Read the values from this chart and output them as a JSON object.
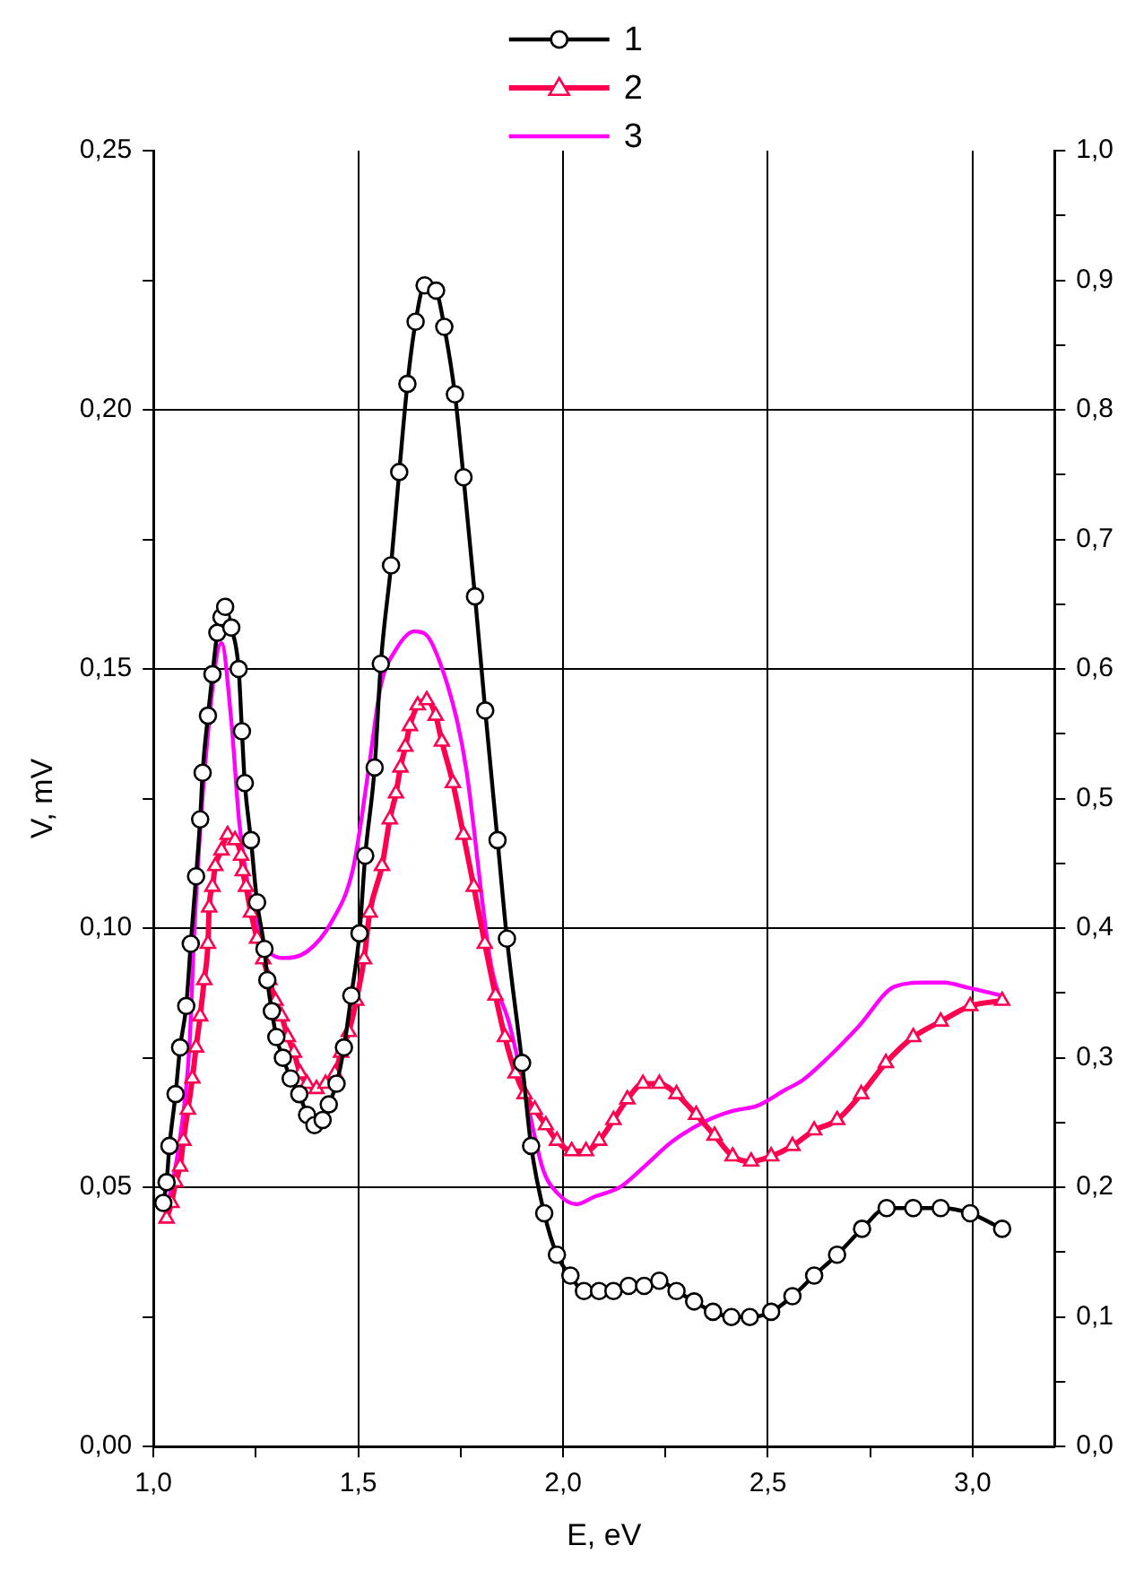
{
  "chart_data": {
    "type": "line",
    "xlabel": "E, eV",
    "ylabel": "V, mV",
    "xlim": [
      1.0,
      3.2
    ],
    "xticks": [
      {
        "value": 1.0,
        "label": "1,0"
      },
      {
        "value": 1.25,
        "label": null
      },
      {
        "value": 1.5,
        "label": "1,5"
      },
      {
        "value": 1.75,
        "label": null
      },
      {
        "value": 2.0,
        "label": "2,0"
      },
      {
        "value": 2.25,
        "label": null
      },
      {
        "value": 2.5,
        "label": "2,5"
      },
      {
        "value": 2.75,
        "label": null
      },
      {
        "value": 3.0,
        "label": "3,0"
      }
    ],
    "ylim": [
      0,
      0.25
    ],
    "yticks": [
      {
        "value": 0,
        "label": "0,00"
      },
      {
        "value": 0.025,
        "label": null
      },
      {
        "value": 0.05,
        "label": "0,05"
      },
      {
        "value": 0.075,
        "label": null
      },
      {
        "value": 0.1,
        "label": "0,10"
      },
      {
        "value": 0.125,
        "label": null
      },
      {
        "value": 0.15,
        "label": "0,15"
      },
      {
        "value": 0.175,
        "label": null
      },
      {
        "value": 0.2,
        "label": "0,20"
      },
      {
        "value": 0.225,
        "label": null
      },
      {
        "value": 0.25,
        "label": "0,25"
      }
    ],
    "y2lim": [
      0,
      1.0
    ],
    "y2ticks": [
      {
        "value": 0,
        "label": "0,0"
      },
      {
        "value": 0.05,
        "label": null
      },
      {
        "value": 0.1,
        "label": "0,1"
      },
      {
        "value": 0.15,
        "label": null
      },
      {
        "value": 0.2,
        "label": "0,2"
      },
      {
        "value": 0.25,
        "label": null
      },
      {
        "value": 0.3,
        "label": "0,3"
      },
      {
        "value": 0.35,
        "label": null
      },
      {
        "value": 0.4,
        "label": "0,4"
      },
      {
        "value": 0.45,
        "label": null
      },
      {
        "value": 0.5,
        "label": "0,5"
      },
      {
        "value": 0.55,
        "label": null
      },
      {
        "value": 0.6,
        "label": "0,6"
      },
      {
        "value": 0.65,
        "label": null
      },
      {
        "value": 0.7,
        "label": "0,7"
      },
      {
        "value": 0.75,
        "label": null
      },
      {
        "value": 0.8,
        "label": "0,8"
      },
      {
        "value": 0.85,
        "label": null
      },
      {
        "value": 0.9,
        "label": "0,9"
      },
      {
        "value": 0.95,
        "label": null
      },
      {
        "value": 1.0,
        "label": "1,0"
      }
    ],
    "grid": true,
    "legend": "top",
    "series": [
      {
        "name": "1",
        "color": "#000000",
        "marker": "circle",
        "x": [
          1.024,
          1.032,
          1.039,
          1.054,
          1.065,
          1.08,
          1.091,
          1.104,
          1.114,
          1.12,
          1.133,
          1.144,
          1.156,
          1.166,
          1.175,
          1.19,
          1.208,
          1.216,
          1.223,
          1.238,
          1.253,
          1.271,
          1.278,
          1.289,
          1.3,
          1.316,
          1.335,
          1.356,
          1.375,
          1.393,
          1.413,
          1.428,
          1.447,
          1.465,
          1.483,
          1.503,
          1.517,
          1.54,
          1.555,
          1.58,
          1.6,
          1.62,
          1.64,
          1.662,
          1.69,
          1.71,
          1.736,
          1.757,
          1.785,
          1.81,
          1.84,
          1.863,
          1.9,
          1.922,
          1.954,
          1.985,
          2.018,
          2.051,
          2.088,
          2.123,
          2.16,
          2.198,
          2.235,
          2.277,
          2.32,
          2.366,
          2.411,
          2.456,
          2.508,
          2.56,
          2.613,
          2.669,
          2.73,
          2.79,
          2.855,
          2.922,
          2.994,
          3.072
        ],
        "values": [
          0.047,
          0.051,
          0.058,
          0.068,
          0.077,
          0.085,
          0.097,
          0.11,
          0.121,
          0.13,
          0.141,
          0.149,
          0.157,
          0.16,
          0.162,
          0.158,
          0.15,
          0.138,
          0.128,
          0.117,
          0.105,
          0.096,
          0.09,
          0.084,
          0.079,
          0.075,
          0.071,
          0.068,
          0.064,
          0.062,
          0.063,
          0.066,
          0.07,
          0.077,
          0.087,
          0.099,
          0.114,
          0.131,
          0.151,
          0.17,
          0.188,
          0.205,
          0.217,
          0.224,
          0.223,
          0.216,
          0.203,
          0.187,
          0.164,
          0.142,
          0.117,
          0.098,
          0.074,
          0.058,
          0.045,
          0.037,
          0.033,
          0.03,
          0.03,
          0.03,
          0.031,
          0.031,
          0.032,
          0.03,
          0.028,
          0.026,
          0.025,
          0.025,
          0.026,
          0.029,
          0.033,
          0.037,
          0.042,
          0.046,
          0.046,
          0.046,
          0.045,
          0.042
        ]
      },
      {
        "name": "2",
        "color": "#ff0050",
        "marker": "triangle",
        "x": [
          1.032,
          1.044,
          1.054,
          1.065,
          1.073,
          1.084,
          1.095,
          1.104,
          1.114,
          1.124,
          1.133,
          1.136,
          1.144,
          1.151,
          1.166,
          1.181,
          1.199,
          1.214,
          1.218,
          1.226,
          1.238,
          1.253,
          1.268,
          1.283,
          1.298,
          1.313,
          1.328,
          1.343,
          1.358,
          1.375,
          1.398,
          1.42,
          1.443,
          1.458,
          1.477,
          1.495,
          1.514,
          1.528,
          1.558,
          1.577,
          1.592,
          1.603,
          1.615,
          1.626,
          1.645,
          1.667,
          1.689,
          1.704,
          1.731,
          1.757,
          1.782,
          1.809,
          1.835,
          1.858,
          1.884,
          1.906,
          1.931,
          1.958,
          1.985,
          2.021,
          2.056,
          2.088,
          2.123,
          2.157,
          2.195,
          2.235,
          2.277,
          2.325,
          2.37,
          2.414,
          2.459,
          2.508,
          2.56,
          2.613,
          2.669,
          2.728,
          2.788,
          2.855,
          2.922,
          2.994,
          3.072
        ],
        "values": [
          0.044,
          0.047,
          0.051,
          0.054,
          0.059,
          0.065,
          0.071,
          0.077,
          0.083,
          0.09,
          0.097,
          0.104,
          0.108,
          0.112,
          0.115,
          0.118,
          0.117,
          0.114,
          0.111,
          0.108,
          0.103,
          0.098,
          0.094,
          0.09,
          0.086,
          0.083,
          0.079,
          0.076,
          0.072,
          0.07,
          0.069,
          0.07,
          0.072,
          0.076,
          0.08,
          0.086,
          0.094,
          0.103,
          0.112,
          0.121,
          0.126,
          0.131,
          0.135,
          0.139,
          0.143,
          0.144,
          0.141,
          0.136,
          0.128,
          0.118,
          0.108,
          0.097,
          0.087,
          0.079,
          0.072,
          0.068,
          0.065,
          0.062,
          0.059,
          0.057,
          0.057,
          0.059,
          0.063,
          0.067,
          0.07,
          0.07,
          0.068,
          0.064,
          0.06,
          0.056,
          0.055,
          0.056,
          0.058,
          0.061,
          0.063,
          0.068,
          0.074,
          0.079,
          0.082,
          0.085,
          0.086
        ]
      },
      {
        "name": "3",
        "color": "#ff00ff",
        "marker": "none",
        "axis": "y2",
        "x": [
          1.03,
          1.061,
          1.088,
          1.1,
          1.13,
          1.166,
          1.19,
          1.21,
          1.256,
          1.316,
          1.375,
          1.435,
          1.488,
          1.525,
          1.555,
          1.592,
          1.637,
          1.667,
          1.704,
          1.742,
          1.764,
          1.824,
          1.869,
          1.913,
          1.951,
          1.988,
          2.033,
          2.078,
          2.138,
          2.198,
          2.265,
          2.347,
          2.414,
          2.474,
          2.541,
          2.586,
          2.653,
          2.721,
          2.81,
          2.885,
          2.93,
          2.99,
          3.072
        ],
        "values": [
          0.18,
          0.23,
          0.31,
          0.4,
          0.54,
          0.62,
          0.56,
          0.48,
          0.4,
          0.377,
          0.382,
          0.405,
          0.447,
          0.522,
          0.587,
          0.615,
          0.629,
          0.626,
          0.601,
          0.559,
          0.522,
          0.372,
          0.326,
          0.265,
          0.214,
          0.195,
          0.187,
          0.193,
          0.2,
          0.216,
          0.235,
          0.251,
          0.259,
          0.263,
          0.275,
          0.283,
          0.302,
          0.324,
          0.355,
          0.358,
          0.358,
          0.354,
          0.348
        ]
      }
    ]
  }
}
